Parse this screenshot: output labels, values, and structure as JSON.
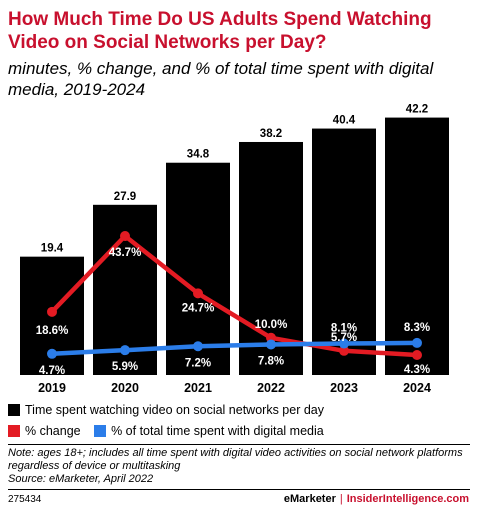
{
  "header": {
    "title": "How Much Time Do US Adults Spend Watching Video on Social Networks per Day?",
    "subtitle": "minutes, % change, and % of total time spent with digital media, 2019-2024"
  },
  "chart_data": {
    "type": "bar",
    "categories": [
      "2019",
      "2020",
      "2021",
      "2022",
      "2023",
      "2024"
    ],
    "series": [
      {
        "name": "Time spent watching video on social networks per day",
        "type": "bar",
        "values": [
          19.4,
          27.9,
          34.8,
          38.2,
          40.4,
          42.2
        ],
        "labels": [
          "19.4",
          "27.9",
          "34.8",
          "38.2",
          "40.4",
          "42.2"
        ],
        "color": "#000000"
      },
      {
        "name": "% change",
        "type": "line",
        "values": [
          18.6,
          43.7,
          24.7,
          10.0,
          5.7,
          4.3
        ],
        "labels": [
          "18.6%",
          "43.7%",
          "24.7%",
          "10.0%",
          "5.7%",
          "4.3%"
        ],
        "color": "#e31b23"
      },
      {
        "name": "% of total time spent with digital media",
        "type": "line",
        "values": [
          4.7,
          5.9,
          7.2,
          7.8,
          8.1,
          8.3
        ],
        "labels": [
          "4.7%",
          "5.9%",
          "7.2%",
          "7.8%",
          "8.1%",
          "8.3%"
        ],
        "color": "#2b7de9"
      }
    ],
    "legend_position": "bottom"
  },
  "legend": {
    "bar_label": "Time spent watching video on social networks per day",
    "change_label": "% change",
    "share_label": "% of total time spent with digital media"
  },
  "note": {
    "text": "Note: ages 18+; includes all time spent with digital video activities on social network platforms regardless of device or multitasking",
    "source": "Source: eMarketer, April 2022"
  },
  "footer": {
    "chart_id": "275434",
    "brand1": "eMarketer",
    "separator": "|",
    "brand2": "InsiderIntelligence.com"
  }
}
